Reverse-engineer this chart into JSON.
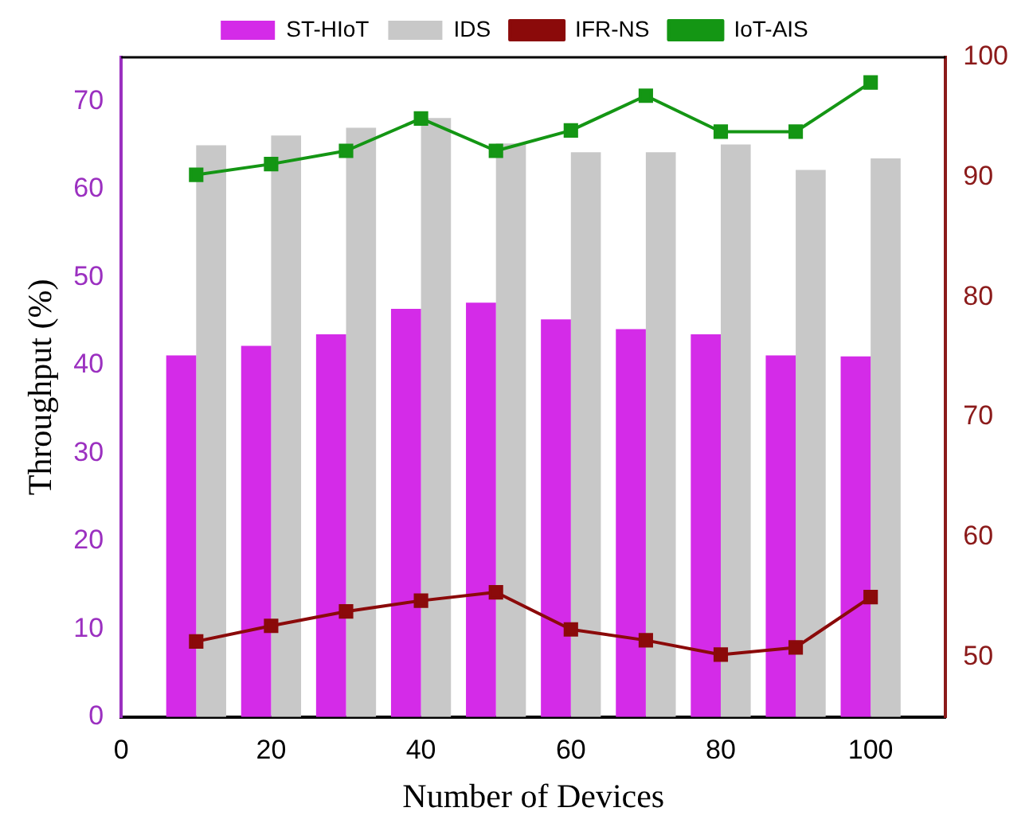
{
  "chart_data": {
    "type": "bar",
    "xlabel": "Number of Devices",
    "ylabel": "Throughput (%)",
    "x": [
      10,
      20,
      30,
      40,
      50,
      60,
      70,
      80,
      90,
      100
    ],
    "xlim": [
      0,
      110
    ],
    "xticks": [
      0,
      20,
      40,
      60,
      80,
      100
    ],
    "ylim": [
      0,
      75
    ],
    "yticks": [
      0,
      10,
      20,
      30,
      40,
      50,
      60,
      70
    ],
    "y2lim": [
      45,
      100
    ],
    "y2ticks": [
      50,
      60,
      70,
      80,
      90,
      100
    ],
    "series": [
      {
        "name": "ST-HIoT",
        "color": "#d42be8",
        "values": [
          41.1,
          42.2,
          43.5,
          46.4,
          47.1,
          45.2,
          44.1,
          43.5,
          41.1,
          41.0
        ]
      },
      {
        "name": "IDS",
        "color": "#c8c8c8",
        "values": [
          65.0,
          66.1,
          67.0,
          68.1,
          65.2,
          64.2,
          64.2,
          65.1,
          62.2,
          63.5
        ]
      },
      {
        "name": "IFR-NS",
        "type": "line",
        "axis": "y2",
        "color": "#8b0a0a",
        "values": [
          51.3,
          52.6,
          53.8,
          54.7,
          55.4,
          52.3,
          51.4,
          50.2,
          50.8,
          55.0
        ]
      },
      {
        "name": "IoT-AIS",
        "type": "line",
        "axis": "y2",
        "color": "#149614",
        "values": [
          90.2,
          91.1,
          92.2,
          94.9,
          92.2,
          93.9,
          96.8,
          93.8,
          93.8,
          97.9
        ]
      }
    ],
    "legend": "top",
    "marker": "square",
    "grid": false
  }
}
